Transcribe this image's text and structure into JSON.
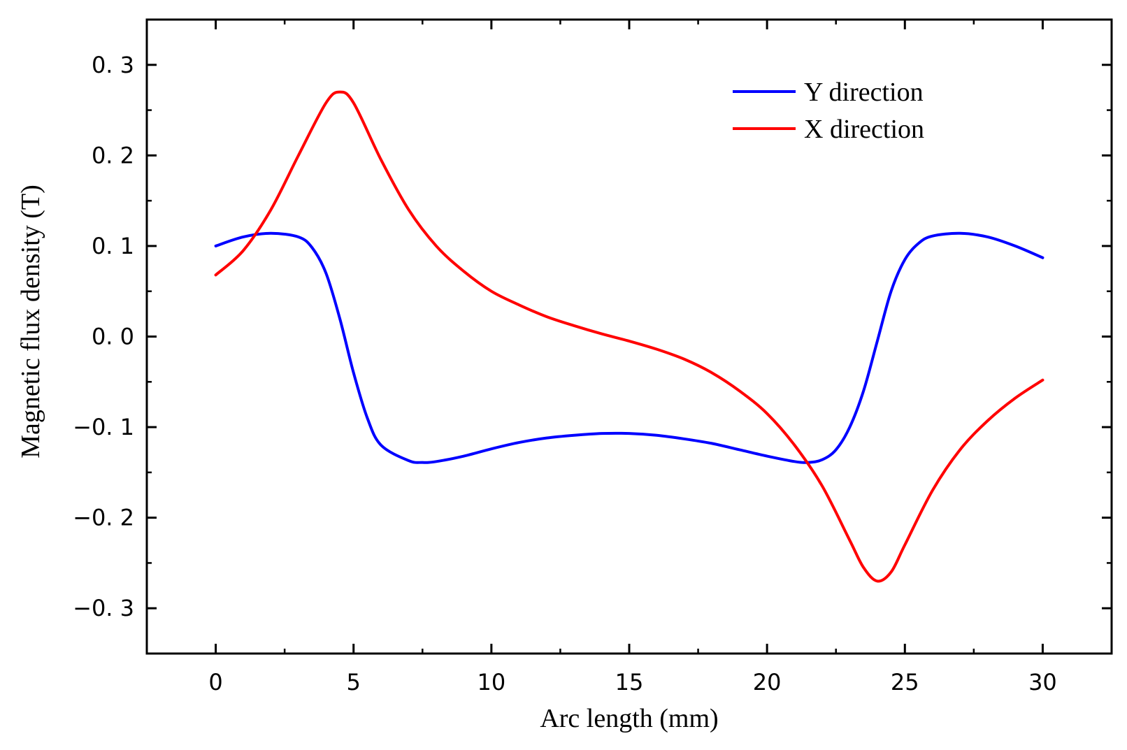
{
  "chart_data": {
    "type": "line",
    "title": "",
    "xlabel": "Arc length (mm)",
    "ylabel": "Magnetic flux density (T)",
    "xlim": [
      -2.5,
      32.5
    ],
    "ylim": [
      -0.35,
      0.35
    ],
    "x_ticks": [
      0,
      5,
      10,
      15,
      20,
      25,
      30
    ],
    "x_tick_labels": [
      "0",
      "5",
      "10",
      "15",
      "20",
      "25",
      "30"
    ],
    "y_ticks": [
      0.3,
      0.2,
      0.1,
      0.0,
      -0.1,
      -0.2,
      -0.3
    ],
    "y_tick_labels": [
      "0. 3",
      "0. 2",
      "0. 1",
      "0. 0",
      "−0. 1",
      "−0. 2",
      "−0. 3"
    ],
    "grid": false,
    "legend_position": "top-right",
    "series": [
      {
        "name": "Y direction",
        "color": "#0000ff",
        "x": [
          0,
          1,
          2,
          3,
          3.5,
          4,
          4.5,
          5,
          5.5,
          6,
          7,
          7.5,
          8,
          9,
          10,
          11,
          12,
          13,
          14,
          15,
          16,
          17,
          18,
          19,
          20,
          21,
          21.5,
          22,
          22.5,
          23,
          23.5,
          24,
          24.5,
          25,
          25.5,
          26,
          27,
          28,
          29,
          30
        ],
        "y": [
          0.1,
          0.11,
          0.114,
          0.11,
          0.098,
          0.07,
          0.02,
          -0.04,
          -0.09,
          -0.12,
          -0.137,
          -0.139,
          -0.138,
          -0.132,
          -0.124,
          -0.117,
          -0.112,
          -0.109,
          -0.107,
          -0.107,
          -0.109,
          -0.113,
          -0.118,
          -0.125,
          -0.132,
          -0.138,
          -0.139,
          -0.136,
          -0.125,
          -0.1,
          -0.06,
          -0.005,
          0.05,
          0.085,
          0.103,
          0.111,
          0.114,
          0.11,
          0.1,
          0.087
        ]
      },
      {
        "name": "X direction",
        "color": "#ff0000",
        "x": [
          0,
          1,
          2,
          3,
          4,
          4.5,
          5,
          6,
          7,
          8,
          9,
          10,
          11,
          12,
          13,
          14,
          15,
          16,
          17,
          18,
          19,
          20,
          21,
          22,
          23,
          23.5,
          24,
          24.5,
          25,
          26,
          27,
          28,
          29,
          30
        ],
        "y": [
          0.068,
          0.095,
          0.14,
          0.2,
          0.258,
          0.27,
          0.258,
          0.195,
          0.14,
          0.1,
          0.072,
          0.05,
          0.035,
          0.022,
          0.012,
          0.003,
          -0.005,
          -0.014,
          -0.025,
          -0.04,
          -0.06,
          -0.085,
          -0.12,
          -0.165,
          -0.225,
          -0.255,
          -0.27,
          -0.26,
          -0.23,
          -0.17,
          -0.125,
          -0.093,
          -0.068,
          -0.048
        ]
      }
    ]
  }
}
